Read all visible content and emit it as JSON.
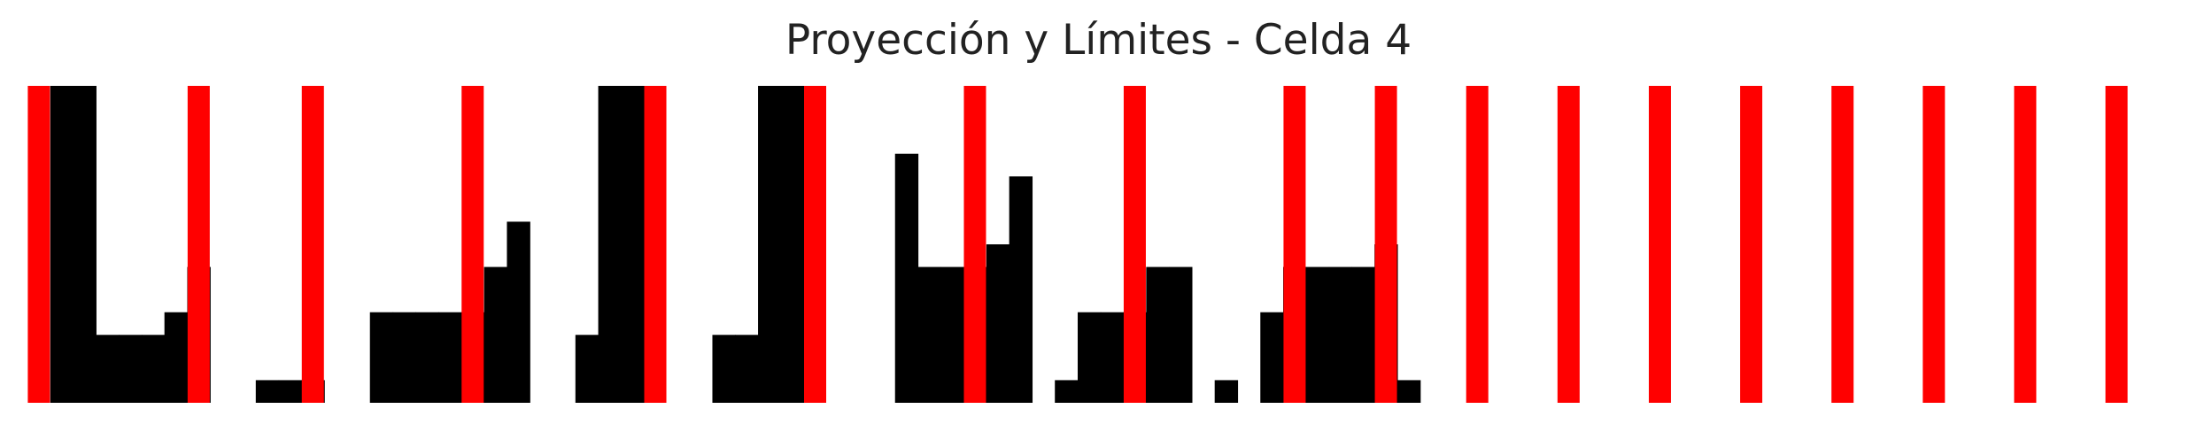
{
  "chart_data": {
    "type": "bar",
    "title": "Proyección y Límites - Celda 4",
    "xlabel": "",
    "ylabel": "",
    "x_range": [
      0,
      92
    ],
    "y_range": [
      0,
      14
    ],
    "grid": false,
    "axes_visible": false,
    "projection": {
      "values": [
        0,
        14,
        14,
        3,
        3,
        3,
        4,
        6,
        0,
        0,
        1,
        1,
        1,
        0,
        0,
        4,
        4,
        4,
        4,
        4,
        6,
        8,
        0,
        0,
        3,
        14,
        14,
        0,
        0,
        0,
        3,
        3,
        14,
        14,
        0,
        0,
        0,
        0,
        11,
        6,
        6,
        6,
        7,
        10,
        0,
        1,
        4,
        4,
        4,
        6,
        6,
        0,
        1,
        0,
        4,
        6,
        6,
        6,
        6,
        7,
        1,
        0
      ],
      "bar_color": "#000000"
    },
    "limits": {
      "x": [
        0.5,
        7.5,
        12.5,
        19.5,
        27.5,
        34.5,
        41.5,
        48.5,
        55.5,
        59.5,
        63.5,
        67.5,
        71.5,
        75.5,
        79.5,
        83.5,
        87.5,
        91.5
      ],
      "color": "#ff0000"
    }
  }
}
